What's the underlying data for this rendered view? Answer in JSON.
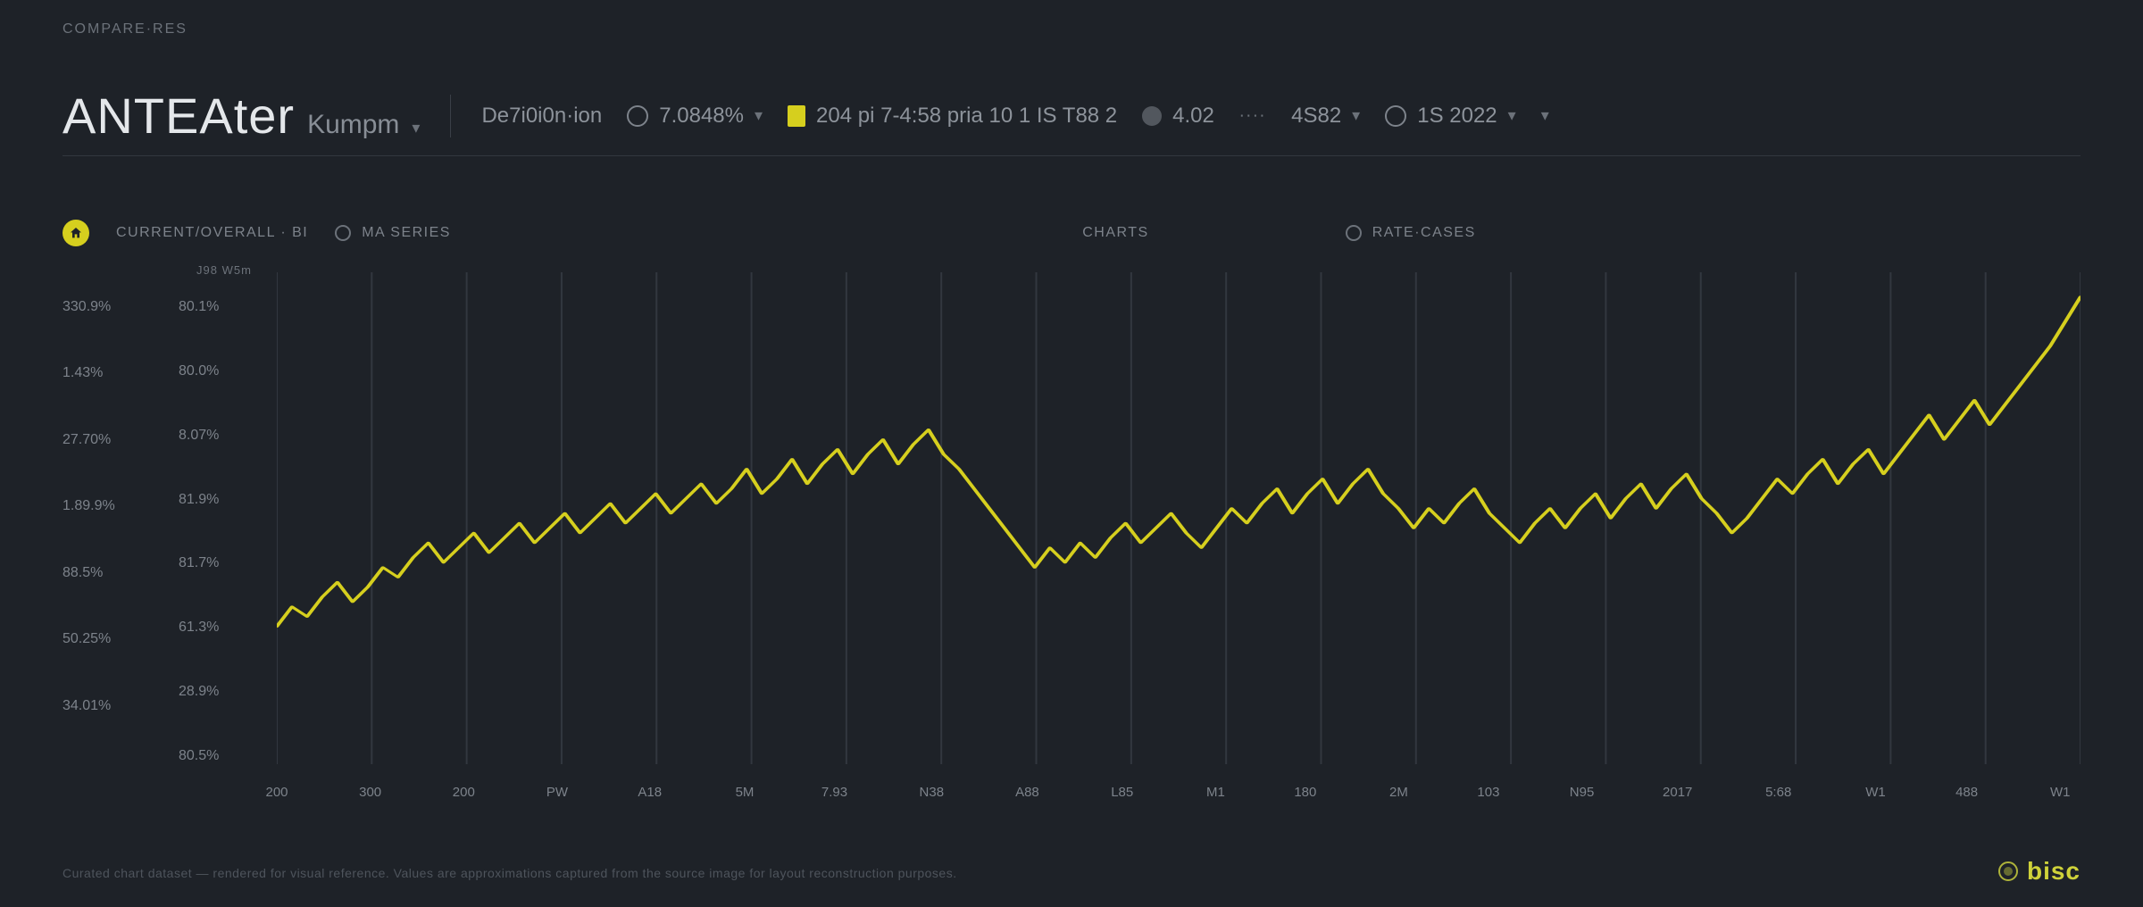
{
  "breadcrumb_label": "COMPARE·RES",
  "brand": {
    "title": "ANTEAter",
    "subtitle": "Kumpm"
  },
  "header": {
    "label1": "De7i0i0n·ion",
    "stat1": "7.0848%",
    "pill_text": "204 pi 7-4:58  pria 10 1 IS  T88 2",
    "stat2": "4.02",
    "stat3": "4S82",
    "stat4": "1S 2022"
  },
  "badges": {
    "a": "CURRENT/OVERALL · BI",
    "b": "MA SERIES",
    "c": "CHARTS",
    "d": "RATE·CASES"
  },
  "chart": {
    "type": "line",
    "subtitle": "J98 W5m",
    "background_color": "#1e2228",
    "grid_color": "#32373f",
    "line_color": "#d6cf1e",
    "line_width": 2.2,
    "ylim": [
      0,
      100
    ],
    "y_labels_a": [
      "330.9%",
      "1.43%",
      "27.70%",
      "1.89.9%",
      "88.5%",
      "50.25%",
      "34.01%",
      ""
    ],
    "y_labels_b": [
      "80.1%",
      "80.0%",
      "8.07%",
      "81.9%",
      "81.7%",
      "61.3%",
      "28.9%",
      "80.5%"
    ],
    "x_labels": [
      "200",
      "300",
      "200",
      "PW",
      "A18",
      "5M",
      "7.93",
      "N38",
      "A88",
      "L85",
      "M1",
      "180",
      "2M",
      "103",
      "N95",
      "2017",
      "5:68",
      "W1",
      "488",
      "W1"
    ],
    "grid_count": 20,
    "data": [
      28,
      32,
      30,
      34,
      37,
      33,
      36,
      40,
      38,
      42,
      45,
      41,
      44,
      47,
      43,
      46,
      49,
      45,
      48,
      51,
      47,
      50,
      53,
      49,
      52,
      55,
      51,
      54,
      57,
      53,
      56,
      60,
      55,
      58,
      62,
      57,
      61,
      64,
      59,
      63,
      66,
      61,
      65,
      68,
      63,
      60,
      56,
      52,
      48,
      44,
      40,
      44,
      41,
      45,
      42,
      46,
      49,
      45,
      48,
      51,
      47,
      44,
      48,
      52,
      49,
      53,
      56,
      51,
      55,
      58,
      53,
      57,
      60,
      55,
      52,
      48,
      52,
      49,
      53,
      56,
      51,
      48,
      45,
      49,
      52,
      48,
      52,
      55,
      50,
      54,
      57,
      52,
      56,
      59,
      54,
      51,
      47,
      50,
      54,
      58,
      55,
      59,
      62,
      57,
      61,
      64,
      59,
      63,
      67,
      71,
      66,
      70,
      74,
      69,
      73,
      77,
      81,
      85,
      90,
      95
    ]
  },
  "footer": {
    "note": "Curated chart dataset — rendered for visual reference. Values are approximations captured from the source image for layout reconstruction purposes.",
    "brand": "bisc"
  }
}
